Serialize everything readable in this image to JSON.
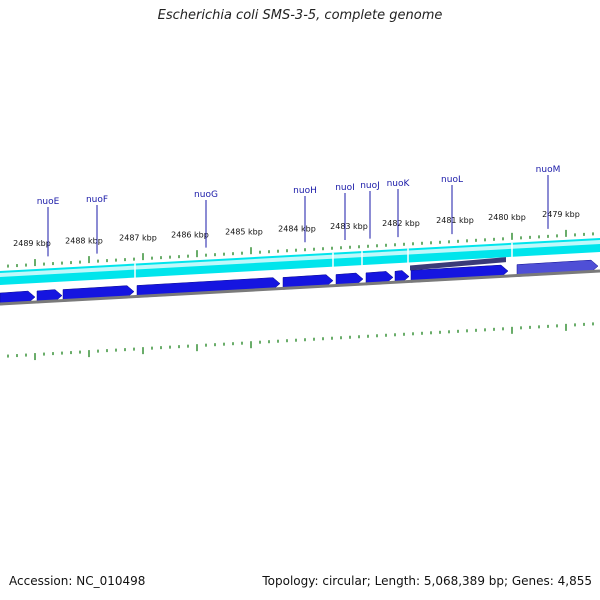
{
  "title": "Escherichia coli SMS-3-5, complete genome",
  "accession": "Accession: NC_010498",
  "summary": "Topology: circular; Length: 5,068,389 bp; Genes: 4,855",
  "kbp_labels": [
    "2489 kbp",
    "2488 kbp",
    "2487 kbp",
    "2486 kbp",
    "2485 kbp",
    "2484 kbp",
    "2483 kbp",
    "2482 kbp",
    "2481 kbp",
    "2480 kbp",
    "2479 kbp"
  ],
  "genes": [
    "nuoE",
    "nuoF",
    "nuoG",
    "nuoH",
    "nuoI",
    "nuoJ",
    "nuoK",
    "nuoL",
    "nuoM"
  ],
  "colors": {
    "cds": "#1515e0",
    "cds_highlight": "#4f4fd6",
    "gene_track": "#00e5ec",
    "gene_track_light": "#bff8fa",
    "gene_label": "#1a1aa8",
    "tick": "#2a8a2a",
    "backbone": "#7a7a7a",
    "reverse_feature": "#3a3a78"
  }
}
